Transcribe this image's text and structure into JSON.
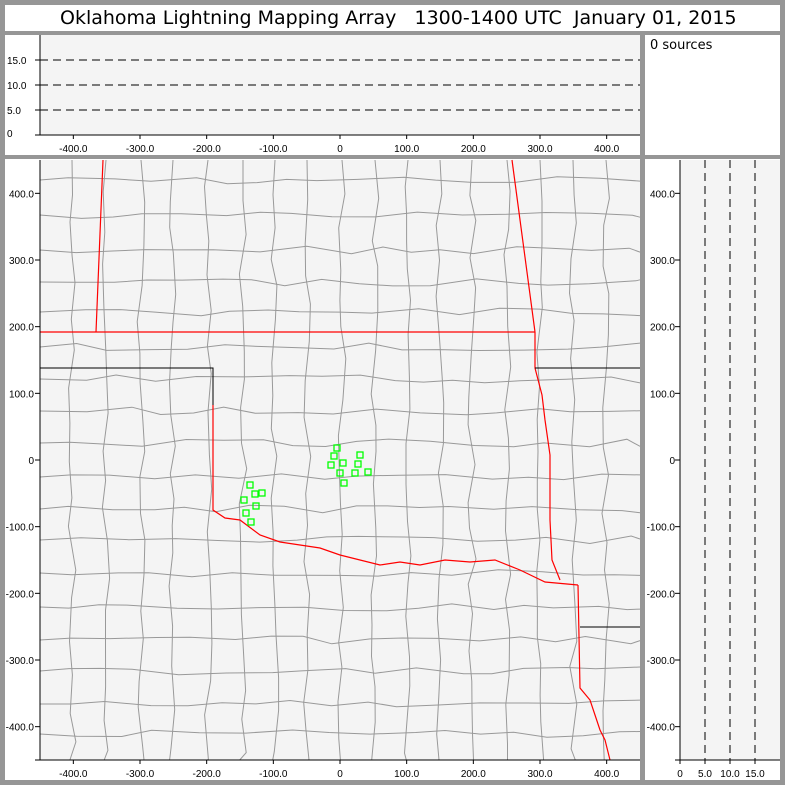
{
  "title": {
    "name": "Oklahoma Lightning Mapping Array",
    "time": "1300-1400 UTC",
    "date": "January 01, 2015"
  },
  "sources_label": "0 sources",
  "colors": {
    "border": "#969696",
    "panel_bg": "#f4f4f4",
    "state_line": "#ff0000",
    "county_line": "#999999",
    "source_marker": "#00ff00"
  },
  "top_panel": {
    "x_ticks": [
      "-400.0",
      "-300.0",
      "-200.0",
      "-100.0",
      "0",
      "100.0",
      "200.0",
      "300.0",
      "400.0"
    ],
    "y_ticks": [
      "0",
      "5.0",
      "10.0",
      "15.0"
    ]
  },
  "map_panel": {
    "x_ticks": [
      "-400.0",
      "-300.0",
      "-200.0",
      "-100.0",
      "0",
      "100.0",
      "200.0",
      "300.0",
      "400.0"
    ],
    "y_ticks": [
      "400.0",
      "300.0",
      "200.0",
      "100.0",
      "0",
      "-100.0",
      "-200.0",
      "-300.0",
      "-400.0"
    ]
  },
  "side_panel": {
    "x_ticks": [
      "0",
      "5.0",
      "10.0",
      "15.0"
    ],
    "y_ticks": [
      "400.0",
      "300.0",
      "200.0",
      "100.0",
      "0",
      "-100.0",
      "-200.0",
      "-300.0",
      "-400.0"
    ]
  },
  "chart_data": {
    "type": "scatter",
    "xlim": [
      -450,
      450
    ],
    "ylim": [
      -450,
      450
    ],
    "zlim": [
      0,
      20
    ],
    "points_km": [
      [
        -4.5,
        18
      ],
      [
        -9,
        6
      ],
      [
        -13.5,
        -7.5
      ],
      [
        4.5,
        -4.5
      ],
      [
        30,
        7.5
      ],
      [
        27,
        -6
      ],
      [
        22.5,
        -19.5
      ],
      [
        42,
        -18
      ],
      [
        0,
        -19.5
      ],
      [
        6,
        -34.5
      ],
      [
        -135,
        -37.5
      ],
      [
        -127.5,
        -51
      ],
      [
        -144,
        -60
      ],
      [
        -141,
        -79.5
      ],
      [
        -126,
        -69
      ],
      [
        -117,
        -49.5
      ],
      [
        -133.5,
        -93
      ]
    ]
  }
}
